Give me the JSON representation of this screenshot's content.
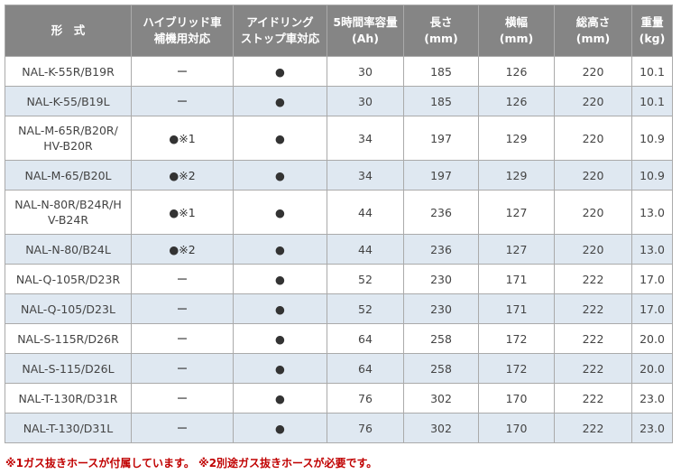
{
  "table": {
    "header": [
      [
        "形　式"
      ],
      [
        "ハイブリッド車",
        "補機用対応"
      ],
      [
        "アイドリング",
        "ストップ車対応"
      ],
      [
        "5時間率容量",
        "(Ah)"
      ],
      [
        "長さ",
        "(mm)"
      ],
      [
        "横幅",
        "(mm)"
      ],
      [
        "総高さ",
        "(mm)"
      ],
      [
        "重量",
        "(kg)"
      ]
    ],
    "rows": [
      [
        "NAL-K-55R/B19R",
        "ー",
        "●",
        "30",
        "185",
        "126",
        "220",
        "10.1"
      ],
      [
        "NAL-K-55/B19L",
        "ー",
        "●",
        "30",
        "185",
        "126",
        "220",
        "10.1"
      ],
      [
        "NAL-M-65R/B20R/HV-B20R",
        "●※1",
        "●",
        "34",
        "197",
        "129",
        "220",
        "10.9"
      ],
      [
        "NAL-M-65/B20L",
        "●※2",
        "●",
        "34",
        "197",
        "129",
        "220",
        "10.9"
      ],
      [
        "NAL-N-80R/B24R/HV-B24R",
        "●※1",
        "●",
        "44",
        "236",
        "127",
        "220",
        "13.0"
      ],
      [
        "NAL-N-80/B24L",
        "●※2",
        "●",
        "44",
        "236",
        "127",
        "220",
        "13.0"
      ],
      [
        "NAL-Q-105R/D23R",
        "ー",
        "●",
        "52",
        "230",
        "171",
        "222",
        "17.0"
      ],
      [
        "NAL-Q-105/D23L",
        "ー",
        "●",
        "52",
        "230",
        "171",
        "222",
        "17.0"
      ],
      [
        "NAL-S-115R/D26R",
        "ー",
        "●",
        "64",
        "258",
        "172",
        "222",
        "20.0"
      ],
      [
        "NAL-S-115/D26L",
        "ー",
        "●",
        "64",
        "258",
        "172",
        "222",
        "20.0"
      ],
      [
        "NAL-T-130R/D31R",
        "ー",
        "●",
        "76",
        "302",
        "170",
        "222",
        "23.0"
      ],
      [
        "NAL-T-130/D31L",
        "ー",
        "●",
        "76",
        "302",
        "170",
        "222",
        "23.0"
      ]
    ]
  },
  "footnote": "※1ガス抜きホースが付属しています。 ※2別途ガス抜きホースが必要です。"
}
